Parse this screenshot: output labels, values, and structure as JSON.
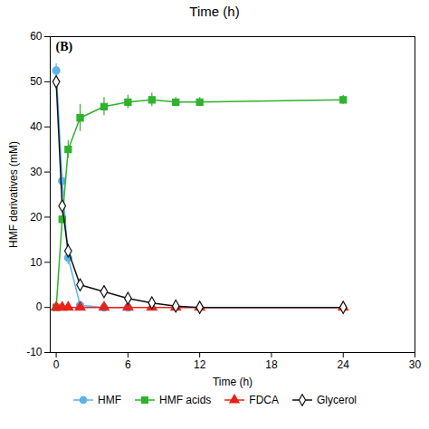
{
  "chart_data": {
    "type": "line",
    "title": "Time (h)",
    "xlabel": "Time (h)",
    "ylabel": "HMF derivatives (mM)",
    "annotations": [
      "(B)"
    ],
    "xlim": [
      -0.5,
      30
    ],
    "ylim": [
      -10,
      60
    ],
    "xticks": [
      0,
      6,
      12,
      18,
      24,
      30
    ],
    "yticks": [
      -10,
      0,
      10,
      20,
      30,
      40,
      50,
      60
    ],
    "grid": false,
    "legend": "bottom",
    "series": [
      {
        "name": "HMF",
        "color": "#5ab4e8",
        "marker": "circle",
        "x": [
          0,
          0.5,
          1,
          2,
          4,
          6
        ],
        "values": [
          52.5,
          28.0,
          11.0,
          0.5,
          0.0,
          0.0
        ],
        "yerr": [
          1.5,
          1.5,
          1.5,
          0.3,
          0.0,
          0.0
        ]
      },
      {
        "name": "HMF acids",
        "color": "#2db32d",
        "marker": "square",
        "x": [
          0,
          0.5,
          1,
          2,
          4,
          6,
          8,
          10,
          12,
          24
        ],
        "values": [
          0.0,
          19.5,
          35.0,
          42.0,
          44.5,
          45.5,
          46.0,
          45.5,
          45.5,
          46.0
        ],
        "yerr": [
          0.3,
          0.5,
          2.0,
          3.0,
          2.0,
          1.5,
          1.5,
          1.0,
          1.0,
          1.0
        ]
      },
      {
        "name": "FDCA",
        "color": "#e8221a",
        "marker": "triangle",
        "x": [
          0,
          0.5,
          1,
          2,
          4,
          6,
          8,
          10,
          12,
          24
        ],
        "values": [
          0,
          0,
          0,
          0,
          0,
          0.0,
          0.0,
          0.0,
          0.0,
          0.0
        ],
        "yerr": [
          0,
          0,
          0,
          0,
          0,
          0,
          0,
          0,
          0,
          0
        ]
      },
      {
        "name": "Glycerol",
        "color": "#111111",
        "marker": "diamond-open",
        "x": [
          0,
          0.5,
          1,
          2,
          4,
          6,
          8,
          10,
          12,
          24
        ],
        "values": [
          50.0,
          22.5,
          12.5,
          5.0,
          3.5,
          2.0,
          1.0,
          0.3,
          0.0,
          0.0
        ],
        "yerr": [
          0.5,
          1.0,
          1.5,
          1.0,
          0.8,
          0.5,
          0.3,
          0.1,
          0,
          0
        ]
      }
    ]
  }
}
